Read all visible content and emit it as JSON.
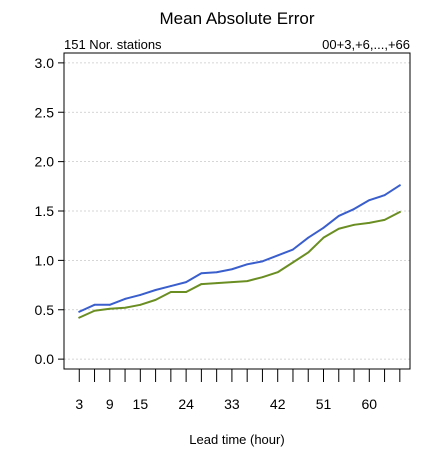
{
  "chart_data": {
    "type": "line",
    "title": "Mean Absolute Error",
    "subtitle_left": "151 Nor. stations",
    "subtitle_right": "00+3,+6,...,+66",
    "xlabel": "Lead time (hour)",
    "ylabel": "",
    "xlim": [
      0,
      68
    ],
    "ylim": [
      -0.1,
      3.1
    ],
    "xticks": [
      3,
      9,
      15,
      24,
      33,
      42,
      51,
      60
    ],
    "yticks": [
      "0.0",
      "0.5",
      "1.0",
      "1.5",
      "2.0",
      "2.5",
      "3.0"
    ],
    "grid": true,
    "x": [
      3,
      6,
      9,
      12,
      15,
      18,
      21,
      24,
      27,
      30,
      33,
      36,
      39,
      42,
      45,
      48,
      51,
      54,
      57,
      60,
      63,
      66
    ],
    "series": [
      {
        "color": "#3a5fcd",
        "values": [
          0.48,
          0.55,
          0.55,
          0.61,
          0.65,
          0.7,
          0.74,
          0.78,
          0.87,
          0.88,
          0.91,
          0.96,
          0.99,
          1.05,
          1.11,
          1.23,
          1.33,
          1.45,
          1.52,
          1.61,
          1.66,
          1.76
        ]
      },
      {
        "color": "#6b8e23",
        "values": [
          0.42,
          0.49,
          0.51,
          0.52,
          0.55,
          0.6,
          0.68,
          0.68,
          0.76,
          0.77,
          0.78,
          0.79,
          0.83,
          0.88,
          0.98,
          1.08,
          1.23,
          1.32,
          1.36,
          1.38,
          1.41,
          1.49
        ]
      }
    ]
  }
}
